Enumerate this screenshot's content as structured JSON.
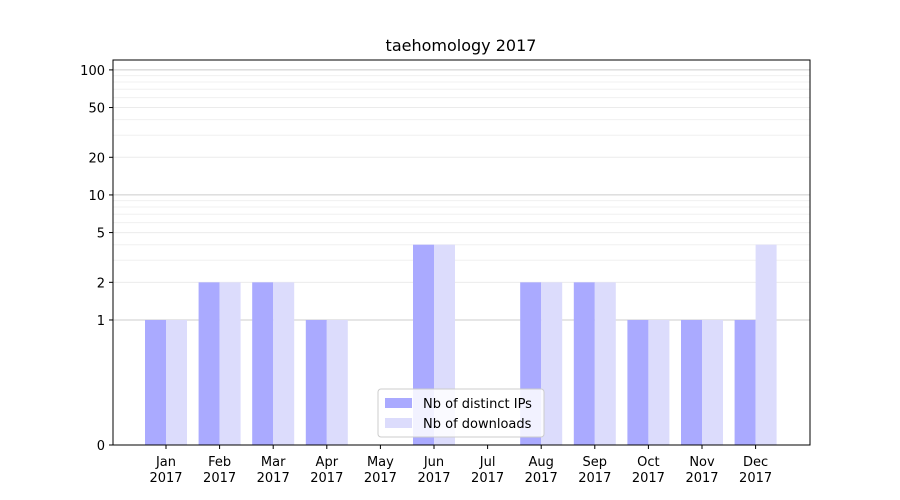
{
  "chart_data": {
    "type": "bar",
    "title": "taehomology 2017",
    "xlabel": "",
    "ylabel": "",
    "y_scale": "symlog",
    "ylim": [
      0,
      120
    ],
    "y_ticks": [
      0,
      1,
      2,
      5,
      10,
      20,
      50,
      100
    ],
    "y_tick_labels": [
      "0",
      "1",
      "2",
      "5",
      "10",
      "20",
      "50",
      "100"
    ],
    "categories": [
      "Jan\n2017",
      "Feb\n2017",
      "Mar\n2017",
      "Apr\n2017",
      "May\n2017",
      "Jun\n2017",
      "Jul\n2017",
      "Aug\n2017",
      "Sep\n2017",
      "Oct\n2017",
      "Nov\n2017",
      "Dec\n2017"
    ],
    "series": [
      {
        "name": "Nb of distinct IPs",
        "color": "#aaaaff",
        "values": [
          1,
          2,
          2,
          1,
          0,
          4,
          0,
          2,
          2,
          1,
          1,
          1
        ]
      },
      {
        "name": "Nb of downloads",
        "color": "#dcdcfc",
        "values": [
          1,
          2,
          2,
          1,
          0,
          4,
          0,
          2,
          2,
          1,
          1,
          4
        ]
      }
    ],
    "grid": true,
    "legend_position": "bottom-center"
  }
}
